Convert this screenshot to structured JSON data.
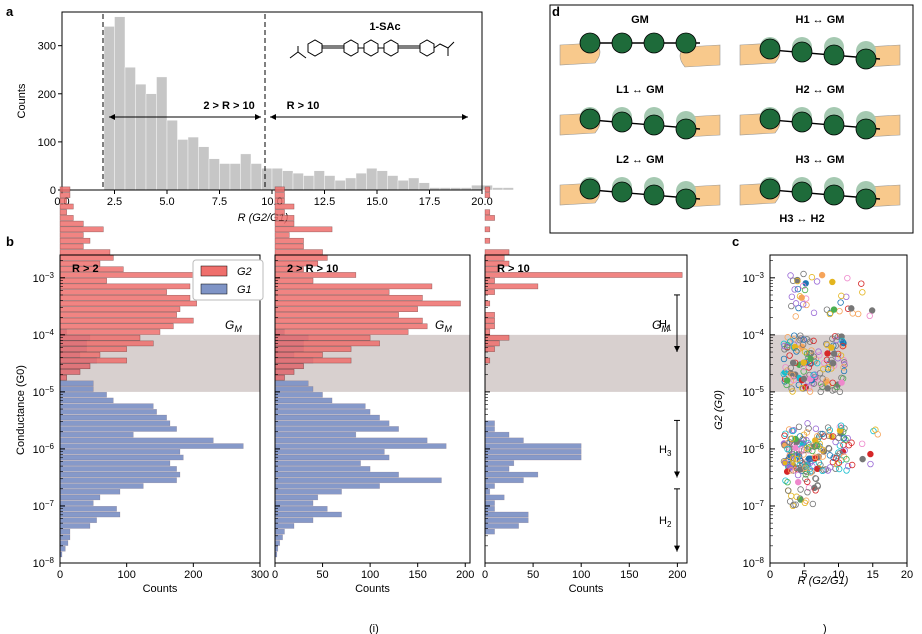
{
  "panel_labels": {
    "a": "a",
    "b": "b",
    "c": "c",
    "d": "d"
  },
  "footer_text": [
    "(i)",
    ")"
  ],
  "chart_data": [
    {
      "id": "a",
      "type": "bar",
      "title": "",
      "xlabel": "R (G2/G1)",
      "ylabel": "Counts",
      "xlim": [
        0,
        20
      ],
      "ylim": [
        0,
        370
      ],
      "xticks": [
        "0.0",
        "2.5",
        "5.0",
        "7.5",
        "10.0",
        "12.5",
        "15.0",
        "17.5",
        "20.0"
      ],
      "yticks": [
        "0",
        "100",
        "200",
        "300"
      ],
      "bin_width": 0.5,
      "bin_start": 2.0,
      "values": [
        340,
        360,
        255,
        220,
        200,
        235,
        145,
        105,
        110,
        90,
        65,
        55,
        55,
        75,
        55,
        45,
        45,
        40,
        35,
        30,
        40,
        30,
        20,
        25,
        35,
        45,
        40,
        30,
        20,
        25,
        15,
        5,
        5,
        5,
        5,
        10,
        10,
        5,
        5
      ],
      "color": "#c6c6c6",
      "annotations": {
        "molecule_label": "1-SAc",
        "range_left": "2 > R > 10",
        "range_right": "R > 10",
        "vlines": [
          2,
          10
        ]
      }
    },
    {
      "id": "b1",
      "type": "bar",
      "orientation": "horizontal",
      "title": "R > 2",
      "xlabel": "Counts",
      "ylabel": "Conductance (G0)",
      "xlim": [
        0,
        300
      ],
      "ylim_log10": [
        -8,
        -2.6
      ],
      "xticks": [
        "0",
        "100",
        "200",
        "300"
      ],
      "yticks": [
        "10^-8",
        "10^-7",
        "10^-6",
        "10^-5",
        "10^-4",
        "10^-3"
      ],
      "band_label": "GM",
      "band_log10": [
        -5.0,
        -4.0
      ],
      "bin_start_log10": -8.0,
      "bin_width_log10": 0.1,
      "series": [
        {
          "name": "G2",
          "color": "#ef6f6c",
          "values": [
            0,
            0,
            0,
            0,
            0,
            0,
            0,
            0,
            0,
            0,
            0,
            0,
            0,
            0,
            0,
            0,
            0,
            0,
            0,
            0,
            0,
            0,
            0,
            0,
            0,
            0,
            0,
            0,
            0,
            0,
            0,
            0,
            10,
            30,
            45,
            100,
            60,
            100,
            140,
            120,
            150,
            170,
            200,
            175,
            180,
            205,
            195,
            160,
            195,
            70,
            300,
            95,
            60,
            80,
            75,
            35,
            45,
            35,
            65,
            35,
            20,
            10,
            20,
            10,
            15,
            15,
            0,
            0,
            0,
            0,
            0,
            0,
            0,
            0,
            0,
            0,
            0,
            0,
            0,
            0,
            0
          ]
        },
        {
          "name": "G1",
          "color": "#7f94c6",
          "values": [
            0,
            3,
            8,
            12,
            15,
            15,
            45,
            55,
            90,
            85,
            50,
            60,
            90,
            125,
            175,
            180,
            175,
            165,
            185,
            180,
            275,
            230,
            110,
            175,
            165,
            160,
            145,
            140,
            80,
            70,
            50,
            50,
            10,
            30,
            45,
            55,
            30,
            40,
            40,
            45,
            10,
            0,
            0,
            0,
            0,
            0,
            0,
            0,
            0,
            0,
            0,
            0,
            0,
            0,
            0,
            0,
            0,
            0,
            0,
            0,
            0,
            0,
            0,
            0,
            0,
            0,
            0,
            0,
            0,
            0,
            0,
            0,
            0,
            0,
            0,
            0,
            0,
            0,
            0,
            0,
            0
          ]
        }
      ]
    },
    {
      "id": "b2",
      "type": "bar",
      "orientation": "horizontal",
      "title": "2 > R > 10",
      "xlabel": "Counts",
      "ylabel": "",
      "xlim": [
        0,
        205
      ],
      "ylim_log10": [
        -8,
        -2.6
      ],
      "xticks": [
        "0",
        "50",
        "100",
        "150",
        "200"
      ],
      "band_label": "GM",
      "band_log10": [
        -5.0,
        -4.0
      ],
      "bin_start_log10": -8.0,
      "bin_width_log10": 0.1,
      "series": [
        {
          "name": "G2",
          "color": "#ef6f6c",
          "values": [
            0,
            0,
            0,
            0,
            0,
            0,
            0,
            0,
            0,
            0,
            0,
            0,
            0,
            0,
            0,
            0,
            0,
            0,
            0,
            0,
            0,
            0,
            0,
            0,
            0,
            0,
            0,
            0,
            0,
            0,
            0,
            0,
            10,
            20,
            30,
            80,
            50,
            80,
            110,
            100,
            140,
            160,
            155,
            130,
            150,
            195,
            155,
            120,
            165,
            40,
            85,
            30,
            45,
            55,
            50,
            30,
            30,
            15,
            60,
            20,
            20,
            10,
            20,
            10,
            10,
            10,
            0,
            0,
            0,
            0,
            0,
            0,
            0,
            0,
            0,
            0,
            0,
            0,
            0,
            0,
            0
          ]
        },
        {
          "name": "G1",
          "color": "#7f94c6",
          "values": [
            0,
            2,
            3,
            5,
            8,
            10,
            20,
            40,
            70,
            55,
            40,
            45,
            70,
            110,
            175,
            130,
            100,
            90,
            120,
            115,
            180,
            160,
            85,
            130,
            120,
            110,
            100,
            95,
            60,
            50,
            40,
            35,
            10,
            20,
            30,
            40,
            20,
            30,
            30,
            35,
            10,
            0,
            0,
            0,
            0,
            0,
            0,
            0,
            0,
            0,
            0,
            0,
            0,
            0,
            0,
            0,
            0,
            0,
            0,
            0,
            0,
            0,
            0,
            0,
            0,
            0,
            0,
            0,
            0,
            0,
            0,
            0,
            0,
            0,
            0,
            0,
            0,
            0,
            0,
            0,
            0
          ]
        }
      ]
    },
    {
      "id": "b3",
      "type": "bar",
      "orientation": "horizontal",
      "title": "R > 10",
      "xlabel": "Counts",
      "ylabel": "",
      "xlim": [
        0,
        210
      ],
      "ylim_log10": [
        -8,
        -2.6
      ],
      "xticks": [
        "0",
        "50",
        "100",
        "150",
        "200"
      ],
      "band_label": "GM",
      "band_log10": [
        -5.0,
        -4.0
      ],
      "bin_start_log10": -8.0,
      "bin_width_log10": 0.1,
      "region_labels": [
        "H1",
        "H3",
        "H2"
      ],
      "series": [
        {
          "name": "G2",
          "color": "#ef6f6c",
          "values": [
            0,
            0,
            0,
            0,
            0,
            0,
            0,
            0,
            0,
            0,
            0,
            0,
            0,
            0,
            0,
            0,
            0,
            0,
            0,
            0,
            0,
            0,
            0,
            0,
            0,
            0,
            0,
            0,
            0,
            0,
            0,
            0,
            0,
            0,
            0,
            5,
            0,
            10,
            15,
            25,
            5,
            10,
            10,
            10,
            0,
            5,
            0,
            10,
            55,
            10,
            205,
            15,
            25,
            20,
            25,
            0,
            5,
            0,
            5,
            0,
            10,
            5,
            0,
            0,
            5,
            5,
            0,
            0,
            0,
            0,
            0,
            0,
            0,
            0,
            0,
            0,
            0,
            0,
            0,
            0,
            0
          ]
        },
        {
          "name": "G1",
          "color": "#7f94c6",
          "values": [
            0,
            0,
            0,
            0,
            0,
            10,
            35,
            45,
            45,
            10,
            10,
            20,
            5,
            10,
            40,
            55,
            25,
            30,
            100,
            100,
            100,
            40,
            25,
            10,
            10,
            0,
            0,
            0,
            0,
            0,
            0,
            0,
            0,
            0,
            0,
            0,
            0,
            0,
            0,
            0,
            0,
            0,
            0,
            0,
            0,
            0,
            0,
            0,
            0,
            0,
            0,
            0,
            0,
            0,
            0,
            0,
            0,
            0,
            0,
            0,
            0,
            0,
            0,
            0,
            0,
            0,
            0,
            0,
            0,
            0,
            0,
            0,
            0,
            0,
            0,
            0,
            0,
            0,
            0,
            0,
            0
          ]
        }
      ]
    },
    {
      "id": "c",
      "type": "scatter",
      "title": "",
      "xlabel": "R (G2/G1)",
      "ylabel": "G2 (G0)",
      "xlim": [
        0,
        20
      ],
      "ylim_log10": [
        -8,
        -2.6
      ],
      "xticks": [
        "0",
        "5",
        "10",
        "15",
        "20"
      ],
      "yticks": [
        "10^-8",
        "10^-7",
        "10^-6",
        "10^-5",
        "10^-4",
        "10^-3"
      ],
      "band_log10": [
        -5.0,
        -4.0
      ]
    }
  ],
  "diagram": {
    "items": [
      {
        "label": "GM"
      },
      {
        "label": "H1 ↔ GM"
      },
      {
        "label": "L1 ↔ GM"
      },
      {
        "label": "H2 ↔ GM"
      },
      {
        "label": "L2 ↔ GM"
      },
      {
        "label": "H3 ↔ GM"
      },
      {
        "label": "H3 ↔ H2"
      }
    ]
  }
}
